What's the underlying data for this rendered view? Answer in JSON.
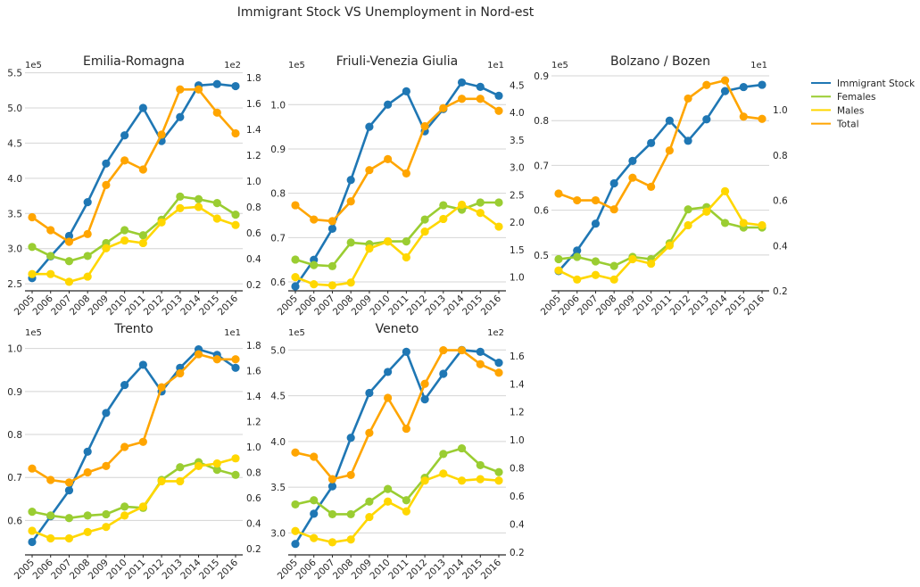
{
  "figure": {
    "title": "Immigrant Stock VS Unemployment in Nord-est"
  },
  "legend": [
    {
      "label": "Immigrant Stock",
      "color": "#1f77b4"
    },
    {
      "label": "Females",
      "color": "#9acd32"
    },
    {
      "label": "Males",
      "color": "#ffd700"
    },
    {
      "label": "Total",
      "color": "#ffa500"
    }
  ],
  "chart_data": [
    {
      "type": "line",
      "title": "Emilia-Romagna",
      "x": [
        "2005",
        "2006",
        "2007",
        "2008",
        "2009",
        "2010",
        "2011",
        "2012",
        "2013",
        "2014",
        "2015",
        "2016"
      ],
      "left_axis": {
        "offset_label": "1e5",
        "ylim": [
          2.4,
          5.52
        ],
        "ticks": [
          2.5,
          3.0,
          3.5,
          4.0,
          4.5,
          5.0,
          5.5
        ]
      },
      "right_axis": {
        "offset_label": "1e2",
        "ylim": [
          0.15,
          1.85
        ],
        "ticks": [
          0.2,
          0.4,
          0.6,
          0.8,
          1.0,
          1.2,
          1.4,
          1.6,
          1.8
        ]
      },
      "series": [
        {
          "name": "Immigrant Stock",
          "axis": "left",
          "color": "#1f77b4",
          "values": [
            2.58,
            2.89,
            3.18,
            3.66,
            4.21,
            4.61,
            5.0,
            4.53,
            4.87,
            5.32,
            5.34,
            5.31
          ]
        },
        {
          "name": "Females",
          "axis": "right",
          "color": "#9acd32",
          "values": [
            0.49,
            0.42,
            0.38,
            0.42,
            0.52,
            0.62,
            0.58,
            0.7,
            0.88,
            0.86,
            0.83,
            0.74
          ]
        },
        {
          "name": "Males",
          "axis": "right",
          "color": "#ffd700",
          "values": [
            0.28,
            0.28,
            0.22,
            0.26,
            0.48,
            0.54,
            0.52,
            0.68,
            0.79,
            0.8,
            0.71,
            0.66
          ]
        },
        {
          "name": "Total",
          "axis": "right",
          "color": "#ffa500",
          "values": [
            0.72,
            0.62,
            0.53,
            0.59,
            0.97,
            1.16,
            1.09,
            1.36,
            1.71,
            1.71,
            1.53,
            1.37
          ]
        }
      ]
    },
    {
      "type": "line",
      "title": "Friuli-Venezia Giulia",
      "x": [
        "2005",
        "2006",
        "2007",
        "2008",
        "2009",
        "2010",
        "2011",
        "2012",
        "2013",
        "2014",
        "2015",
        "2016"
      ],
      "left_axis": {
        "offset_label": "1e5",
        "ylim": [
          0.58,
          1.075
        ],
        "ticks": [
          0.6,
          0.7,
          0.8,
          0.9,
          1.0
        ]
      },
      "right_axis": {
        "offset_label": "1e1",
        "ylim": [
          0.75,
          4.75
        ],
        "ticks": [
          1.0,
          1.5,
          2.0,
          2.5,
          3.0,
          3.5,
          4.0,
          4.5
        ]
      },
      "series": [
        {
          "name": "Immigrant Stock",
          "axis": "left",
          "color": "#1f77b4",
          "values": [
            0.59,
            0.65,
            0.72,
            0.83,
            0.95,
            1.0,
            1.03,
            0.94,
            0.99,
            1.05,
            1.04,
            1.02
          ]
        },
        {
          "name": "Females",
          "axis": "right",
          "color": "#9acd32",
          "values": [
            1.32,
            1.22,
            1.2,
            1.63,
            1.6,
            1.65,
            1.65,
            2.05,
            2.31,
            2.23,
            2.36,
            2.36
          ]
        },
        {
          "name": "Males",
          "axis": "right",
          "color": "#ffd700",
          "values": [
            1.0,
            0.87,
            0.85,
            0.9,
            1.52,
            1.65,
            1.36,
            1.83,
            2.06,
            2.32,
            2.17,
            1.92
          ]
        },
        {
          "name": "Total",
          "axis": "right",
          "color": "#ffa500",
          "values": [
            2.31,
            2.05,
            2.02,
            2.38,
            2.95,
            3.15,
            2.89,
            3.75,
            4.08,
            4.25,
            4.25,
            4.03
          ]
        }
      ]
    },
    {
      "type": "line",
      "title": "Bolzano / Bozen",
      "x": [
        "2005",
        "2006",
        "2007",
        "2008",
        "2009",
        "2010",
        "2011",
        "2012",
        "2013",
        "2014",
        "2015",
        "2016"
      ],
      "left_axis": {
        "offset_label": "1e5",
        "ylim": [
          0.42,
          0.91
        ],
        "ticks": [
          0.5,
          0.6,
          0.7,
          0.8,
          0.9
        ]
      },
      "right_axis": {
        "offset_label": "1e1",
        "ylim": [
          0.2,
          1.17
        ],
        "ticks": [
          0.2,
          0.4,
          0.6,
          0.8,
          1.0
        ]
      },
      "series": [
        {
          "name": "Immigrant Stock",
          "axis": "left",
          "color": "#1f77b4",
          "values": [
            0.464,
            0.51,
            0.57,
            0.66,
            0.71,
            0.75,
            0.8,
            0.755,
            0.803,
            0.866,
            0.875,
            0.88
          ]
        },
        {
          "name": "Females",
          "axis": "right",
          "color": "#9acd32",
          "values": [
            0.34,
            0.35,
            0.33,
            0.31,
            0.35,
            0.34,
            0.41,
            0.56,
            0.57,
            0.5,
            0.48,
            0.48
          ]
        },
        {
          "name": "Males",
          "axis": "right",
          "color": "#ffd700",
          "values": [
            0.29,
            0.25,
            0.27,
            0.25,
            0.34,
            0.32,
            0.4,
            0.49,
            0.55,
            0.64,
            0.5,
            0.49
          ]
        },
        {
          "name": "Total",
          "axis": "right",
          "color": "#ffa500",
          "values": [
            0.63,
            0.6,
            0.6,
            0.56,
            0.7,
            0.66,
            0.82,
            1.05,
            1.11,
            1.13,
            0.97,
            0.96
          ]
        }
      ]
    },
    {
      "type": "line",
      "title": "Trento",
      "x": [
        "2005",
        "2006",
        "2007",
        "2008",
        "2009",
        "2010",
        "2011",
        "2012",
        "2013",
        "2014",
        "2015",
        "2016"
      ],
      "left_axis": {
        "offset_label": "1e5",
        "ylim": [
          0.52,
          1.022
        ],
        "ticks": [
          0.6,
          0.7,
          0.8,
          0.9,
          1.0
        ]
      },
      "right_axis": {
        "offset_label": "1e1",
        "ylim": [
          0.15,
          1.85
        ],
        "ticks": [
          0.2,
          0.4,
          0.6,
          0.8,
          1.0,
          1.2,
          1.4,
          1.6,
          1.8
        ]
      },
      "series": [
        {
          "name": "Immigrant Stock",
          "axis": "left",
          "color": "#1f77b4",
          "values": [
            0.55,
            0.61,
            0.67,
            0.76,
            0.85,
            0.915,
            0.962,
            0.9,
            0.955,
            0.998,
            0.985,
            0.955
          ]
        },
        {
          "name": "Females",
          "axis": "right",
          "color": "#9acd32",
          "values": [
            0.49,
            0.46,
            0.44,
            0.46,
            0.47,
            0.53,
            0.52,
            0.74,
            0.84,
            0.88,
            0.82,
            0.78
          ]
        },
        {
          "name": "Males",
          "axis": "right",
          "color": "#ffd700",
          "values": [
            0.34,
            0.28,
            0.28,
            0.33,
            0.37,
            0.46,
            0.53,
            0.73,
            0.73,
            0.85,
            0.87,
            0.91
          ]
        },
        {
          "name": "Total",
          "axis": "right",
          "color": "#ffa500",
          "values": [
            0.83,
            0.74,
            0.72,
            0.8,
            0.85,
            1.0,
            1.04,
            1.47,
            1.58,
            1.73,
            1.69,
            1.69
          ]
        }
      ]
    },
    {
      "type": "line",
      "title": "Veneto",
      "x": [
        "2005",
        "2006",
        "2007",
        "2008",
        "2009",
        "2010",
        "2011",
        "2012",
        "2013",
        "2014",
        "2015",
        "2016"
      ],
      "left_axis": {
        "offset_label": "1e5",
        "ylim": [
          2.76,
          5.12
        ],
        "ticks": [
          3.0,
          3.5,
          4.0,
          4.5,
          5.0
        ]
      },
      "right_axis": {
        "offset_label": "1e2",
        "ylim": [
          0.18,
          1.72
        ],
        "ticks": [
          0.2,
          0.4,
          0.6,
          0.8,
          1.0,
          1.2,
          1.4,
          1.6
        ]
      },
      "series": [
        {
          "name": "Immigrant Stock",
          "axis": "left",
          "color": "#1f77b4",
          "values": [
            2.88,
            3.21,
            3.51,
            4.04,
            4.53,
            4.76,
            4.98,
            4.46,
            4.74,
            5.0,
            4.98,
            4.86
          ]
        },
        {
          "name": "Females",
          "axis": "right",
          "color": "#9acd32",
          "values": [
            0.54,
            0.57,
            0.47,
            0.47,
            0.56,
            0.65,
            0.57,
            0.73,
            0.9,
            0.94,
            0.82,
            0.77
          ]
        },
        {
          "name": "Males",
          "axis": "right",
          "color": "#ffd700",
          "values": [
            0.35,
            0.3,
            0.27,
            0.29,
            0.45,
            0.56,
            0.49,
            0.71,
            0.76,
            0.71,
            0.72,
            0.71
          ]
        },
        {
          "name": "Total",
          "axis": "right",
          "color": "#ffa500",
          "values": [
            0.91,
            0.88,
            0.72,
            0.75,
            1.05,
            1.3,
            1.08,
            1.4,
            1.64,
            1.64,
            1.54,
            1.48
          ]
        }
      ]
    }
  ]
}
